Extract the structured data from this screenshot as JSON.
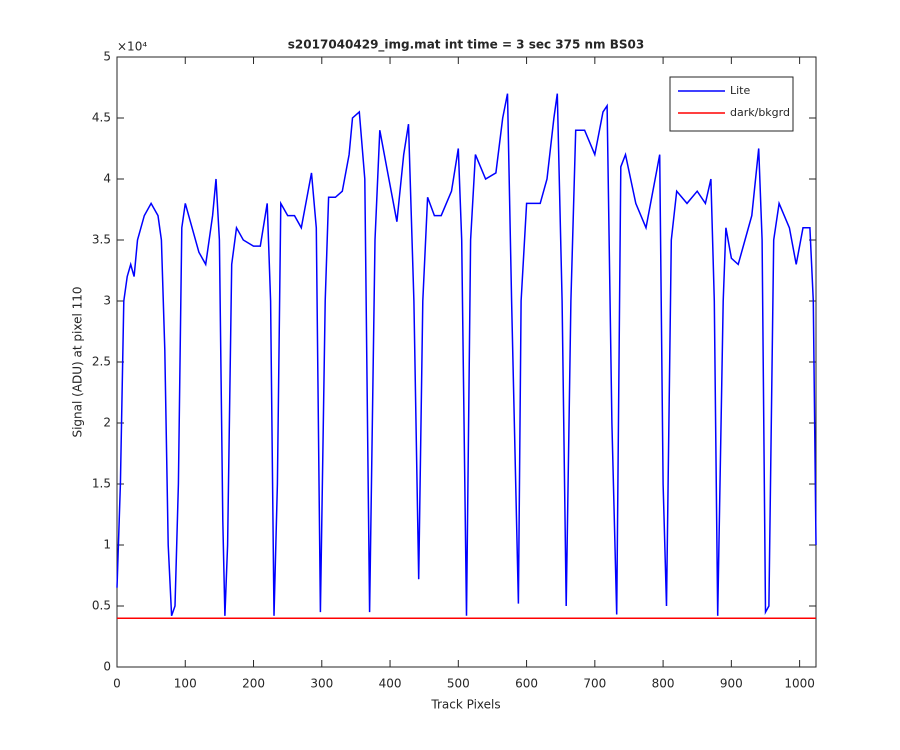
{
  "chart_data": {
    "type": "line",
    "title": "s2017040429_img.mat int time = 3 sec  375 nm BS03",
    "xlabel": "Track Pixels",
    "ylabel": "Signal (ADU) at pixel 110",
    "y_multiplier": "×10⁴",
    "xlim": [
      0,
      1024
    ],
    "ylim": [
      0,
      5
    ],
    "xticks": [
      0,
      100,
      200,
      300,
      400,
      500,
      600,
      700,
      800,
      900,
      1000
    ],
    "yticks": [
      0,
      0.5,
      1,
      1.5,
      2,
      2.5,
      3,
      3.5,
      4,
      4.5,
      5
    ],
    "legend": "upper right",
    "series": [
      {
        "name": "Lite",
        "color": "#0000ff",
        "x": [
          0,
          5,
          10,
          15,
          20,
          25,
          30,
          40,
          50,
          60,
          65,
          70,
          75,
          80,
          85,
          90,
          95,
          100,
          110,
          120,
          130,
          140,
          145,
          150,
          155,
          158,
          162,
          168,
          175,
          185,
          200,
          210,
          220,
          225,
          230,
          235,
          240,
          250,
          260,
          270,
          280,
          285,
          292,
          298,
          305,
          310,
          320,
          330,
          340,
          345,
          355,
          363,
          370,
          378,
          385,
          395,
          410,
          420,
          427,
          435,
          442,
          448,
          455,
          465,
          475,
          490,
          500,
          505,
          512,
          518,
          525,
          540,
          555,
          565,
          572,
          578,
          588,
          592,
          600,
          620,
          630,
          640,
          645,
          652,
          658,
          665,
          672,
          685,
          700,
          712,
          718,
          725,
          732,
          738,
          745,
          760,
          775,
          790,
          795,
          800,
          805,
          812,
          820,
          835,
          850,
          862,
          870,
          875,
          880,
          888,
          892,
          900,
          910,
          920,
          930,
          940,
          945,
          950,
          955,
          962,
          970,
          985,
          995,
          1005,
          1015,
          1020,
          1024
        ],
        "values": [
          0.65,
          1.5,
          3.0,
          3.2,
          3.3,
          3.2,
          3.5,
          3.7,
          3.8,
          3.7,
          3.5,
          2.6,
          1.0,
          0.42,
          0.5,
          1.5,
          3.6,
          3.8,
          3.6,
          3.4,
          3.3,
          3.7,
          4.0,
          3.5,
          1.2,
          0.42,
          1.0,
          3.3,
          3.6,
          3.5,
          3.45,
          3.45,
          3.8,
          3.0,
          0.42,
          1.5,
          3.8,
          3.7,
          3.7,
          3.6,
          3.9,
          4.05,
          3.6,
          0.45,
          3.0,
          3.85,
          3.85,
          3.9,
          4.2,
          4.5,
          4.55,
          4.0,
          0.45,
          3.5,
          4.4,
          4.1,
          3.65,
          4.2,
          4.45,
          3.0,
          0.72,
          3.0,
          3.85,
          3.7,
          3.7,
          3.9,
          4.25,
          3.5,
          0.42,
          3.5,
          4.2,
          4.0,
          4.05,
          4.5,
          4.7,
          3.0,
          0.52,
          3.0,
          3.8,
          3.8,
          4.0,
          4.5,
          4.7,
          3.0,
          0.5,
          3.0,
          4.4,
          4.4,
          4.2,
          4.55,
          4.6,
          2.0,
          0.43,
          4.1,
          4.2,
          3.8,
          3.6,
          4.05,
          4.2,
          1.5,
          0.5,
          3.5,
          3.9,
          3.8,
          3.9,
          3.8,
          4.0,
          3.0,
          0.42,
          3.0,
          3.6,
          3.35,
          3.3,
          3.5,
          3.7,
          4.25,
          3.5,
          0.45,
          0.5,
          3.5,
          3.8,
          3.6,
          3.3,
          3.6,
          3.6,
          3.0,
          1.0
        ]
      },
      {
        "name": "dark/bkgrd",
        "color": "#ff0000",
        "x": [
          0,
          1024
        ],
        "values": [
          0.4,
          0.4
        ]
      }
    ]
  }
}
